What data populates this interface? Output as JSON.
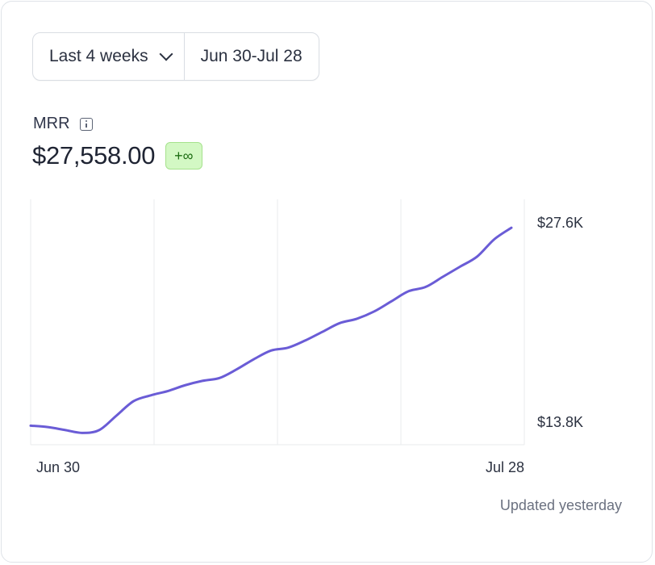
{
  "range": {
    "period_label": "Last 4 weeks",
    "dates_label": "Jun 30-Jul 28"
  },
  "metric": {
    "label": "MRR",
    "value": "$27,558.00",
    "change": "+∞"
  },
  "footer": {
    "updated": "Updated yesterday"
  },
  "colors": {
    "line": "#6a5cd6",
    "grid": "#e9ebee",
    "badge_bg": "#d3f8c4",
    "badge_text": "#1d6d13"
  },
  "chart_data": {
    "type": "line",
    "title": "",
    "xlabel": "",
    "ylabel": "",
    "x_tick_labels": [
      "Jun 30",
      "Jul 28"
    ],
    "y_tick_labels": [
      "$13.8K",
      "$27.6K"
    ],
    "y_tick_values": [
      13800,
      27600
    ],
    "grid": "vertical",
    "series": [
      {
        "x": [
          "2024-06-30",
          "2024-07-01",
          "2024-07-02",
          "2024-07-03",
          "2024-07-04",
          "2024-07-05",
          "2024-07-06",
          "2024-07-07",
          "2024-07-08",
          "2024-07-09",
          "2024-07-10",
          "2024-07-11",
          "2024-07-12",
          "2024-07-13",
          "2024-07-14",
          "2024-07-15",
          "2024-07-16",
          "2024-07-17",
          "2024-07-18",
          "2024-07-19",
          "2024-07-20",
          "2024-07-21",
          "2024-07-22",
          "2024-07-23",
          "2024-07-24",
          "2024-07-25",
          "2024-07-26",
          "2024-07-27",
          "2024-07-28"
        ],
        "values": [
          13500,
          13400,
          13200,
          13000,
          13200,
          14200,
          15200,
          15600,
          15900,
          16300,
          16600,
          16800,
          17400,
          18100,
          18700,
          18900,
          19400,
          20000,
          20600,
          20900,
          21400,
          22100,
          22800,
          23100,
          23800,
          24500,
          25200,
          26400,
          27200
        ]
      }
    ]
  }
}
